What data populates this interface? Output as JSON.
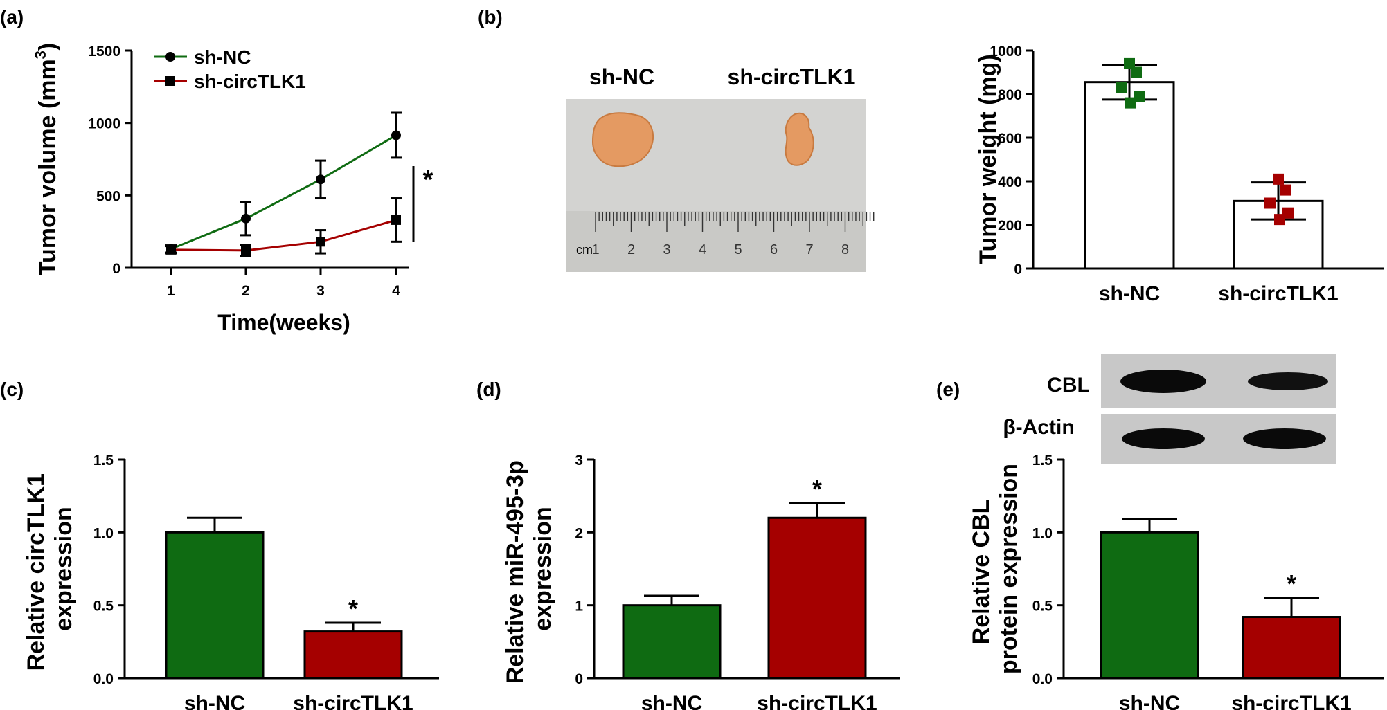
{
  "colors": {
    "green": "#0f6b12",
    "red": "#a50000",
    "photo_bg": "#d3d3d1",
    "blot_bg": "#c8c8c8"
  },
  "photo_panel": {
    "label": "(b)",
    "group_labels": [
      "sh-NC",
      "sh-circTLK1"
    ],
    "ruler_labels": [
      "cm",
      "1",
      "2",
      "3",
      "4",
      "5",
      "6",
      "7",
      "8"
    ]
  },
  "blot_panel": {
    "band_labels": [
      "CBL",
      "β-Actin"
    ]
  },
  "chart_data": [
    {
      "panel": "(a)",
      "type": "line",
      "ylabel": "Tumor volume (mm3)",
      "ylabel_main": "Tumor volume (mm",
      "ylabel_sup": "3",
      "ylabel_end": ")",
      "xlabel": "Time(weeks)",
      "x": [
        1,
        2,
        3,
        4
      ],
      "xticks": [
        "1",
        "2",
        "3",
        "4"
      ],
      "yticks": [
        "0",
        "500",
        "1000",
        "1500"
      ],
      "ylim": [
        0,
        1500
      ],
      "series": [
        {
          "name": "sh-NC",
          "color": "#0f6b12",
          "marker": "circle",
          "values": [
            130,
            340,
            610,
            915
          ],
          "errors": [
            25,
            115,
            130,
            155
          ]
        },
        {
          "name": "sh-circTLK1",
          "color": "#a50000",
          "marker": "square",
          "values": [
            125,
            120,
            180,
            330
          ],
          "errors": [
            25,
            40,
            80,
            150
          ]
        }
      ],
      "annotation": "*",
      "legend": "top-left"
    },
    {
      "panel": "(b)",
      "type": "bar",
      "ylabel": "Tumor weight (mg)",
      "categories": [
        "sh-NC",
        "sh-circTLK1"
      ],
      "values": [
        855,
        310
      ],
      "errors": [
        80,
        85
      ],
      "points": [
        [
          940,
          900,
          830,
          790,
          760
        ],
        [
          410,
          360,
          300,
          255,
          225
        ]
      ],
      "point_colors": [
        "#0f6b12",
        "#a50000"
      ],
      "yticks": [
        "0",
        "200",
        "400",
        "600",
        "800",
        "1000"
      ],
      "ylim": [
        0,
        1000
      ]
    },
    {
      "panel": "(c)",
      "type": "bar",
      "ylabel": "Relative circTLK1 expression",
      "ylabel_lines": [
        "Relative circTLK1",
        "expression"
      ],
      "categories": [
        "sh-NC",
        "sh-circTLK1"
      ],
      "values": [
        1.0,
        0.32
      ],
      "errors": [
        0.1,
        0.06
      ],
      "colors": [
        "#0f6b12",
        "#a50000"
      ],
      "annotations": [
        "",
        "*"
      ],
      "yticks": [
        "0.0",
        "0.5",
        "1.0",
        "1.5"
      ],
      "ylim": [
        0,
        1.5
      ]
    },
    {
      "panel": "(d)",
      "type": "bar",
      "ylabel": "Relative miR-495-3p expression",
      "ylabel_lines": [
        "Relative miR-495-3p",
        "expression"
      ],
      "categories": [
        "sh-NC",
        "sh-circTLK1"
      ],
      "values": [
        1.0,
        2.2
      ],
      "errors": [
        0.13,
        0.2
      ],
      "colors": [
        "#0f6b12",
        "#a50000"
      ],
      "annotations": [
        "",
        "*"
      ],
      "yticks": [
        "0",
        "1",
        "2",
        "3"
      ],
      "ylim": [
        0,
        3
      ]
    },
    {
      "panel": "(e)",
      "type": "bar",
      "ylabel": "Relative CBL protein expression",
      "ylabel_lines": [
        "Relative CBL",
        "protein expression"
      ],
      "categories": [
        "sh-NC",
        "sh-circTLK1"
      ],
      "values": [
        1.0,
        0.42
      ],
      "errors": [
        0.09,
        0.13
      ],
      "colors": [
        "#0f6b12",
        "#a50000"
      ],
      "annotations": [
        "",
        "*"
      ],
      "yticks": [
        "0.0",
        "0.5",
        "1.0",
        "1.5"
      ],
      "ylim": [
        0,
        1.5
      ]
    }
  ]
}
